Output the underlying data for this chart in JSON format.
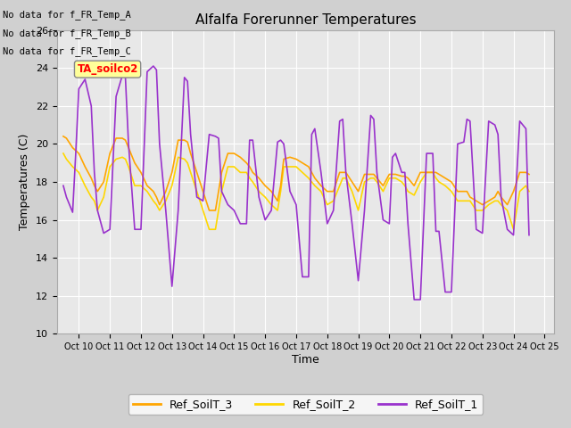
{
  "title": "Alfalfa Forerunner Temperatures",
  "xlabel": "Time",
  "ylabel": "Temperatures (C)",
  "ylim": [
    10,
    26
  ],
  "xlim": [
    9.3,
    25.3
  ],
  "xticks": [
    10,
    11,
    12,
    13,
    14,
    15,
    16,
    17,
    18,
    19,
    20,
    21,
    22,
    23,
    24,
    25
  ],
  "xtick_labels": [
    "Oct 10",
    "Oct 11",
    "Oct 12",
    "Oct 13",
    "Oct 14",
    "Oct 15",
    "Oct 16",
    "Oct 17",
    "Oct 18",
    "Oct 19",
    "Oct 20",
    "Oct 21",
    "Oct 22",
    "Oct 23",
    "Oct 24",
    "Oct 25"
  ],
  "yticks": [
    10,
    12,
    14,
    16,
    18,
    20,
    22,
    24,
    26
  ],
  "no_data_texts": [
    "No data for f_FR_Temp_A",
    "No data for f_FR_Temp_B",
    "No data for f_FR_Temp_C"
  ],
  "annotation_text": "TA_soilco2",
  "color_orange": "#FFA500",
  "color_yellow": "#FFD700",
  "color_purple": "#9932CC",
  "legend_labels": [
    "Ref_SoilT_3",
    "Ref_SoilT_2",
    "Ref_SoilT_1"
  ],
  "fig_bg": "#d0d0d0",
  "ax_bg": "#e8e8e8",
  "ref3_x": [
    9.5,
    9.6,
    9.8,
    10.0,
    10.2,
    10.4,
    10.5,
    10.6,
    10.8,
    11.0,
    11.2,
    11.4,
    11.5,
    11.6,
    11.8,
    12.0,
    12.2,
    12.4,
    12.5,
    12.6,
    12.8,
    13.0,
    13.2,
    13.4,
    13.5,
    13.6,
    13.8,
    14.0,
    14.2,
    14.4,
    14.5,
    14.6,
    14.8,
    15.0,
    15.2,
    15.4,
    15.5,
    15.6,
    15.8,
    16.0,
    16.2,
    16.4,
    16.5,
    16.6,
    16.8,
    17.0,
    17.2,
    17.4,
    17.5,
    17.6,
    17.8,
    18.0,
    18.2,
    18.4,
    18.5,
    18.6,
    18.8,
    19.0,
    19.2,
    19.4,
    19.5,
    19.6,
    19.8,
    20.0,
    20.2,
    20.4,
    20.5,
    20.6,
    20.8,
    21.0,
    21.2,
    21.4,
    21.5,
    21.6,
    21.8,
    22.0,
    22.2,
    22.4,
    22.5,
    22.6,
    22.8,
    23.0,
    23.2,
    23.4,
    23.5,
    23.6,
    23.8,
    24.0,
    24.2,
    24.4,
    24.5
  ],
  "ref3_y": [
    20.4,
    20.3,
    19.8,
    19.5,
    18.8,
    18.2,
    17.8,
    17.5,
    18.0,
    19.5,
    20.3,
    20.3,
    20.2,
    19.8,
    19.0,
    18.5,
    17.8,
    17.5,
    17.2,
    16.8,
    17.5,
    18.5,
    20.2,
    20.2,
    20.1,
    19.5,
    18.5,
    17.5,
    16.5,
    16.5,
    17.5,
    18.5,
    19.5,
    19.5,
    19.3,
    19.0,
    18.8,
    18.5,
    18.2,
    17.8,
    17.5,
    17.0,
    17.8,
    19.2,
    19.3,
    19.2,
    19.0,
    18.8,
    18.5,
    18.2,
    17.8,
    17.5,
    17.5,
    18.5,
    18.5,
    18.5,
    18.0,
    17.5,
    18.4,
    18.4,
    18.4,
    18.2,
    17.8,
    18.4,
    18.4,
    18.3,
    18.3,
    18.2,
    17.8,
    18.5,
    18.5,
    18.5,
    18.5,
    18.4,
    18.2,
    18.0,
    17.5,
    17.5,
    17.5,
    17.2,
    17.0,
    16.8,
    17.0,
    17.2,
    17.5,
    17.2,
    16.8,
    17.5,
    18.5,
    18.5,
    18.4
  ],
  "ref2_x": [
    9.5,
    9.6,
    9.8,
    10.0,
    10.2,
    10.4,
    10.5,
    10.6,
    10.8,
    11.0,
    11.2,
    11.4,
    11.5,
    11.6,
    11.8,
    12.0,
    12.2,
    12.4,
    12.5,
    12.6,
    12.8,
    13.0,
    13.2,
    13.4,
    13.5,
    13.6,
    13.8,
    14.0,
    14.2,
    14.4,
    14.5,
    14.6,
    14.8,
    15.0,
    15.2,
    15.4,
    15.5,
    15.6,
    15.8,
    16.0,
    16.2,
    16.4,
    16.5,
    16.6,
    16.8,
    17.0,
    17.2,
    17.4,
    17.5,
    17.6,
    17.8,
    18.0,
    18.2,
    18.4,
    18.5,
    18.6,
    18.8,
    19.0,
    19.2,
    19.4,
    19.5,
    19.6,
    19.8,
    20.0,
    20.2,
    20.4,
    20.5,
    20.6,
    20.8,
    21.0,
    21.2,
    21.4,
    21.5,
    21.6,
    21.8,
    22.0,
    22.2,
    22.4,
    22.5,
    22.6,
    22.8,
    23.0,
    23.2,
    23.4,
    23.5,
    23.6,
    23.8,
    24.0,
    24.2,
    24.4,
    24.5
  ],
  "ref2_y": [
    19.5,
    19.2,
    18.8,
    18.5,
    17.8,
    17.2,
    17.0,
    16.5,
    17.2,
    18.8,
    19.2,
    19.3,
    19.2,
    18.8,
    17.8,
    17.8,
    17.5,
    17.0,
    16.8,
    16.5,
    17.0,
    17.8,
    19.3,
    19.2,
    19.0,
    18.5,
    17.5,
    16.5,
    15.5,
    15.5,
    16.5,
    17.5,
    18.8,
    18.8,
    18.5,
    18.5,
    18.2,
    18.0,
    17.5,
    17.2,
    16.8,
    16.5,
    17.5,
    18.8,
    18.8,
    18.8,
    18.5,
    18.2,
    18.0,
    17.8,
    17.5,
    16.8,
    17.0,
    17.8,
    18.2,
    18.2,
    17.5,
    16.5,
    18.0,
    18.2,
    18.2,
    18.0,
    17.5,
    18.2,
    18.2,
    18.0,
    17.8,
    17.5,
    17.3,
    18.0,
    18.5,
    18.5,
    18.2,
    18.0,
    17.8,
    17.5,
    17.0,
    17.0,
    17.0,
    17.0,
    16.5,
    16.5,
    16.8,
    17.0,
    17.0,
    16.8,
    16.5,
    15.5,
    17.5,
    17.8,
    17.5
  ],
  "ref1_x": [
    9.5,
    9.6,
    9.7,
    9.8,
    9.9,
    10.0,
    10.2,
    10.4,
    10.5,
    10.6,
    10.8,
    11.0,
    11.2,
    11.4,
    11.5,
    11.6,
    11.8,
    12.0,
    12.2,
    12.4,
    12.5,
    12.6,
    12.8,
    13.0,
    13.2,
    13.4,
    13.5,
    13.6,
    13.8,
    14.0,
    14.2,
    14.4,
    14.5,
    14.6,
    14.8,
    15.0,
    15.2,
    15.4,
    15.5,
    15.6,
    15.8,
    16.0,
    16.2,
    16.4,
    16.5,
    16.6,
    16.8,
    17.0,
    17.2,
    17.4,
    17.5,
    17.6,
    17.8,
    18.0,
    18.2,
    18.4,
    18.5,
    18.6,
    18.8,
    19.0,
    19.2,
    19.4,
    19.5,
    19.6,
    19.8,
    20.0,
    20.1,
    20.2,
    20.4,
    20.5,
    20.6,
    20.8,
    21.0,
    21.2,
    21.4,
    21.5,
    21.6,
    21.8,
    22.0,
    22.2,
    22.4,
    22.5,
    22.6,
    22.8,
    23.0,
    23.2,
    23.4,
    23.5,
    23.6,
    23.8,
    24.0,
    24.2,
    24.4,
    24.5
  ],
  "ref1_y": [
    17.8,
    17.2,
    16.8,
    16.4,
    19.5,
    22.9,
    23.4,
    22.0,
    18.5,
    16.5,
    15.3,
    15.5,
    22.5,
    23.6,
    23.5,
    20.0,
    15.5,
    15.5,
    23.8,
    24.1,
    23.9,
    20.0,
    16.5,
    12.5,
    16.5,
    23.5,
    23.3,
    20.5,
    17.2,
    17.0,
    20.5,
    20.4,
    20.3,
    17.5,
    16.8,
    16.5,
    15.8,
    15.8,
    20.2,
    20.2,
    17.2,
    16.0,
    16.5,
    20.1,
    20.2,
    20.0,
    17.5,
    16.8,
    13.0,
    13.0,
    20.5,
    20.8,
    18.5,
    15.8,
    16.5,
    21.2,
    21.3,
    18.5,
    15.8,
    12.8,
    16.5,
    21.5,
    21.3,
    18.5,
    16.0,
    15.8,
    19.3,
    19.5,
    18.5,
    18.5,
    15.8,
    11.8,
    11.8,
    19.5,
    19.5,
    15.4,
    15.4,
    12.2,
    12.2,
    20.0,
    20.1,
    21.3,
    21.2,
    15.5,
    15.3,
    21.2,
    21.0,
    20.5,
    17.2,
    15.5,
    15.2,
    21.2,
    20.8,
    15.2
  ]
}
